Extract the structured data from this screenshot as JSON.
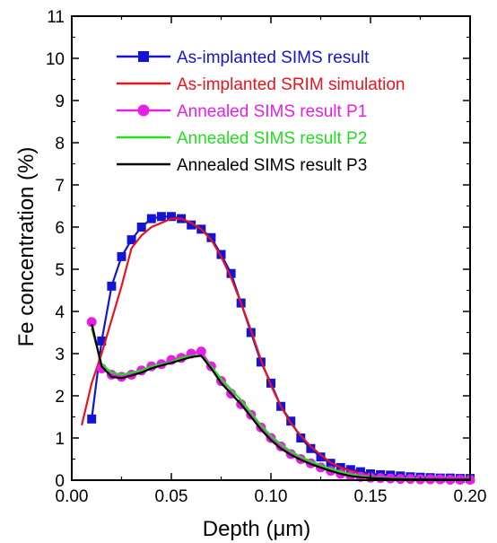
{
  "chart_data": {
    "type": "line",
    "xlabel": "Depth (μm)",
    "ylabel": "Fe concentration (%)",
    "xlim": [
      0.0,
      0.2
    ],
    "ylim": [
      0,
      11
    ],
    "x_ticks": [
      "0.00",
      "0.05",
      "0.10",
      "0.15",
      "0.20"
    ],
    "y_ticks": [
      "0",
      "1",
      "2",
      "3",
      "4",
      "5",
      "6",
      "7",
      "8",
      "9",
      "10",
      "11"
    ],
    "grid": false,
    "legend_position": "top-left",
    "series": [
      {
        "name": "As-implanted SIMS result",
        "color": "#1414d4",
        "marker": "square",
        "x": [
          0.01,
          0.015,
          0.02,
          0.025,
          0.03,
          0.035,
          0.04,
          0.045,
          0.05,
          0.055,
          0.06,
          0.065,
          0.07,
          0.075,
          0.08,
          0.085,
          0.09,
          0.095,
          0.1,
          0.105,
          0.11,
          0.115,
          0.12,
          0.125,
          0.13,
          0.135,
          0.14,
          0.145,
          0.15,
          0.155,
          0.16,
          0.165,
          0.17,
          0.175,
          0.18,
          0.185,
          0.19,
          0.195,
          0.2
        ],
        "y": [
          1.45,
          3.3,
          4.6,
          5.3,
          5.7,
          6.0,
          6.2,
          6.25,
          6.25,
          6.2,
          6.05,
          5.95,
          5.75,
          5.35,
          4.9,
          4.2,
          3.5,
          2.8,
          2.3,
          1.75,
          1.4,
          1.0,
          0.75,
          0.55,
          0.4,
          0.3,
          0.25,
          0.2,
          0.15,
          0.13,
          0.12,
          0.1,
          0.08,
          0.07,
          0.06,
          0.05,
          0.05,
          0.04,
          0.04
        ]
      },
      {
        "name": "As-implanted SRIM simulation",
        "color": "#e8141e",
        "marker": "none",
        "x": [
          0.005,
          0.01,
          0.015,
          0.02,
          0.025,
          0.03,
          0.035,
          0.04,
          0.045,
          0.05,
          0.055,
          0.06,
          0.065,
          0.07,
          0.075,
          0.08,
          0.085,
          0.09,
          0.095,
          0.1,
          0.105,
          0.11,
          0.115,
          0.12,
          0.125,
          0.13,
          0.135,
          0.14,
          0.145,
          0.15,
          0.155,
          0.16,
          0.165,
          0.17,
          0.18,
          0.19,
          0.2
        ],
        "y": [
          1.3,
          2.3,
          3.0,
          3.8,
          4.6,
          5.5,
          5.8,
          6.0,
          6.1,
          6.2,
          6.2,
          6.1,
          5.95,
          5.7,
          5.3,
          4.8,
          4.2,
          3.55,
          2.85,
          2.25,
          1.75,
          1.35,
          1.05,
          0.8,
          0.6,
          0.42,
          0.3,
          0.22,
          0.16,
          0.12,
          0.08,
          0.06,
          0.05,
          0.04,
          0.03,
          0.02,
          0.01
        ]
      },
      {
        "name": "Annealed SIMS result P1",
        "color": "#e61ee6",
        "marker": "circle",
        "x": [
          0.01,
          0.015,
          0.02,
          0.025,
          0.03,
          0.035,
          0.04,
          0.045,
          0.05,
          0.055,
          0.06,
          0.065,
          0.07,
          0.075,
          0.08,
          0.085,
          0.09,
          0.095,
          0.1,
          0.105,
          0.11,
          0.115,
          0.12,
          0.125,
          0.13,
          0.135,
          0.14,
          0.145,
          0.15,
          0.155,
          0.16,
          0.165,
          0.17,
          0.175,
          0.18,
          0.185,
          0.19,
          0.195,
          0.2
        ],
        "y": [
          3.75,
          2.65,
          2.5,
          2.45,
          2.5,
          2.6,
          2.7,
          2.75,
          2.85,
          2.9,
          3.0,
          3.05,
          2.7,
          2.35,
          2.05,
          1.8,
          1.55,
          1.25,
          1.0,
          0.8,
          0.62,
          0.5,
          0.4,
          0.3,
          0.22,
          0.15,
          0.1,
          0.08,
          0.06,
          0.05,
          0.04,
          0.03,
          0.03,
          0.02,
          0.02,
          0.02,
          0.01,
          0.01,
          0.01
        ]
      },
      {
        "name": "Annealed SIMS result P2",
        "color": "#22dd22",
        "marker": "none",
        "x": [
          0.01,
          0.015,
          0.02,
          0.025,
          0.03,
          0.035,
          0.04,
          0.045,
          0.05,
          0.055,
          0.06,
          0.065,
          0.07,
          0.075,
          0.08,
          0.085,
          0.09,
          0.095,
          0.1,
          0.105,
          0.11,
          0.115,
          0.12,
          0.125,
          0.13,
          0.135,
          0.14,
          0.145,
          0.15,
          0.16,
          0.17,
          0.18,
          0.19,
          0.2
        ],
        "y": [
          3.6,
          2.75,
          2.55,
          2.5,
          2.55,
          2.6,
          2.7,
          2.75,
          2.8,
          2.9,
          2.95,
          2.95,
          2.7,
          2.4,
          2.15,
          1.9,
          1.6,
          1.3,
          1.05,
          0.85,
          0.68,
          0.55,
          0.45,
          0.35,
          0.27,
          0.2,
          0.14,
          0.1,
          0.07,
          0.04,
          0.03,
          0.02,
          0.01,
          0.01
        ]
      },
      {
        "name": "Annealed SIMS result P3",
        "color": "#000000",
        "marker": "none",
        "x": [
          0.01,
          0.015,
          0.02,
          0.025,
          0.03,
          0.035,
          0.04,
          0.045,
          0.05,
          0.055,
          0.06,
          0.065,
          0.07,
          0.075,
          0.08,
          0.085,
          0.09,
          0.095,
          0.1,
          0.105,
          0.11,
          0.115,
          0.12,
          0.125,
          0.13,
          0.135,
          0.14,
          0.145,
          0.15,
          0.16,
          0.17,
          0.18,
          0.19,
          0.2
        ],
        "y": [
          3.7,
          2.7,
          2.45,
          2.42,
          2.48,
          2.55,
          2.65,
          2.72,
          2.78,
          2.85,
          2.92,
          2.95,
          2.65,
          2.3,
          2.05,
          1.8,
          1.5,
          1.2,
          0.95,
          0.75,
          0.6,
          0.48,
          0.38,
          0.3,
          0.22,
          0.15,
          0.1,
          0.07,
          0.05,
          0.03,
          0.02,
          0.02,
          0.01,
          0.01
        ]
      }
    ]
  }
}
